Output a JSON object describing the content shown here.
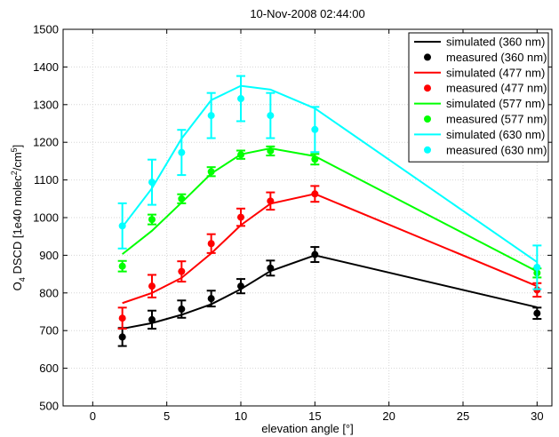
{
  "chart_data": {
    "type": "line",
    "title": "10-Nov-2008 02:44:00",
    "xlabel": "elevation angle [°]",
    "ylabel": {
      "main": "O",
      "sub": "4",
      "rest": " DSCD [1e40 molec",
      "sup1": "2",
      "mid": "/cm",
      "sup2": "5",
      "end": "]"
    },
    "xlim": [
      -2,
      31
    ],
    "ylim": [
      500,
      1500
    ],
    "xticks": [
      0,
      5,
      10,
      15,
      20,
      25,
      30
    ],
    "yticks": [
      500,
      600,
      700,
      800,
      900,
      1000,
      1100,
      1200,
      1300,
      1400,
      1500
    ],
    "grid": true,
    "legend_position": "top-right",
    "x": [
      2,
      4,
      6,
      8,
      10,
      12,
      15,
      30
    ],
    "series": [
      {
        "name": "simulated (360 nm)",
        "kind": "line",
        "color": "#000000",
        "values": [
          705,
          720,
          742,
          770,
          810,
          858,
          900,
          762
        ]
      },
      {
        "name": "measured (360 nm)",
        "kind": "points",
        "color": "#000000",
        "values": [
          683,
          729,
          757,
          785,
          818,
          866,
          902,
          746
        ],
        "errors": [
          24,
          24,
          23,
          21,
          19,
          20,
          20,
          15
        ]
      },
      {
        "name": "simulated (477 nm)",
        "kind": "line",
        "color": "#ff0000",
        "values": [
          773,
          800,
          840,
          905,
          980,
          1037,
          1063,
          818
        ]
      },
      {
        "name": "measured (477 nm)",
        "kind": "points",
        "color": "#ff0000",
        "values": [
          733,
          818,
          857,
          931,
          1001,
          1044,
          1063,
          808
        ],
        "errors": [
          28,
          30,
          27,
          25,
          23,
          23,
          21,
          18
        ]
      },
      {
        "name": "simulated (577 nm)",
        "kind": "line",
        "color": "#00ff00",
        "values": [
          903,
          965,
          1040,
          1117,
          1168,
          1184,
          1163,
          857
        ]
      },
      {
        "name": "measured (577 nm)",
        "kind": "points",
        "color": "#00ff00",
        "values": [
          871,
          995,
          1050,
          1122,
          1167,
          1177,
          1155,
          853
        ],
        "errors": [
          14,
          13,
          12,
          12,
          11,
          12,
          14,
          12
        ]
      },
      {
        "name": "simulated (630 nm)",
        "kind": "line",
        "color": "#00ffff",
        "values": [
          975,
          1078,
          1210,
          1312,
          1350,
          1340,
          1290,
          882
        ]
      },
      {
        "name": "measured (630 nm)",
        "kind": "points",
        "color": "#00ffff",
        "values": [
          978,
          1094,
          1173,
          1271,
          1316,
          1271,
          1234,
          868
        ],
        "errors": [
          60,
          60,
          60,
          60,
          60,
          60,
          60,
          58
        ]
      }
    ]
  }
}
